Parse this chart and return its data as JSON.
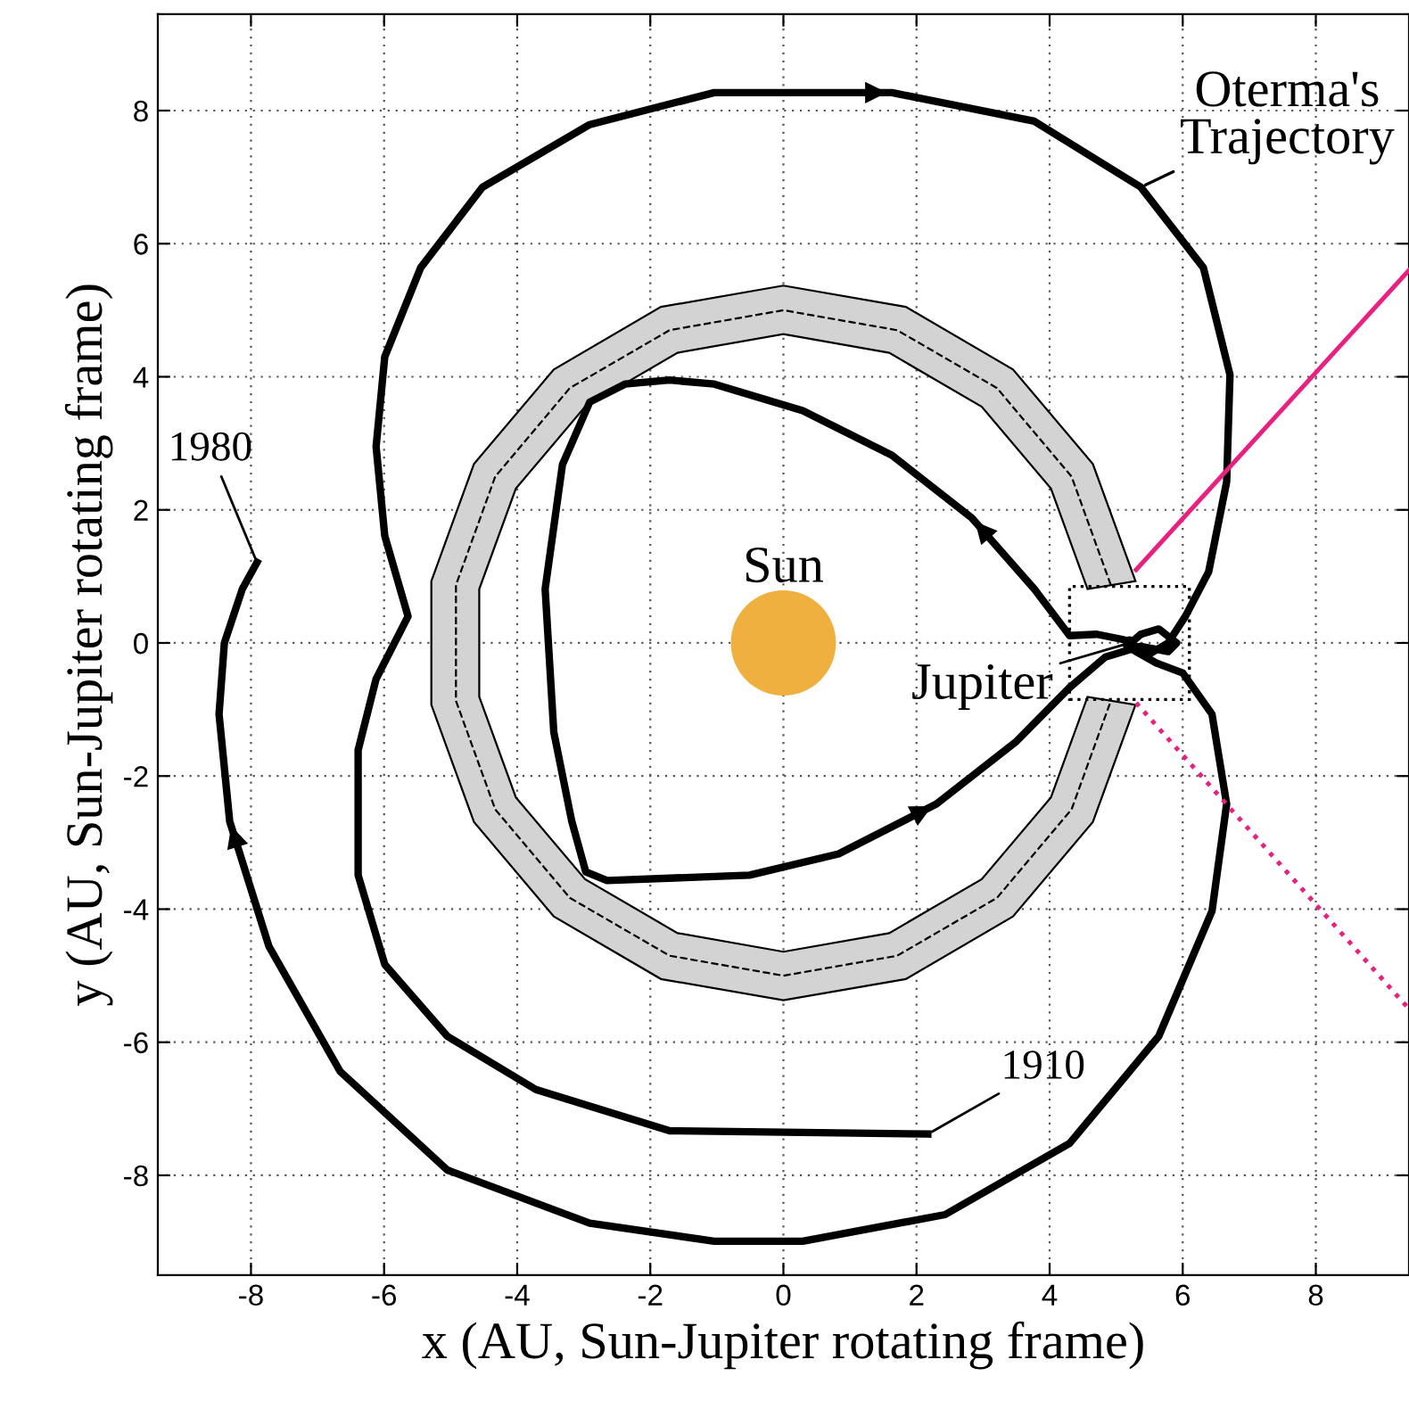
{
  "chart_data": {
    "type": "line",
    "xlabel": "x (AU, Sun-Jupiter rotating frame)",
    "ylabel": "y (AU, Sun-Jupiter rotating frame)",
    "xlim": [
      -9.4,
      9.4
    ],
    "ylim": [
      -9.5,
      9.45
    ],
    "xticks": [
      -8,
      -6,
      -4,
      -2,
      0,
      2,
      4,
      6,
      8
    ],
    "yticks": [
      -8,
      -6,
      -4,
      -2,
      0,
      2,
      4,
      6,
      8
    ],
    "grid": true,
    "marker": "none",
    "series": [
      {
        "type": "area",
        "color": "#d3d3d3",
        "x": [
          5.29,
          4.65,
          3.45,
          1.84,
          0,
          -1.84,
          -3.45,
          -4.65,
          -5.29,
          -5.29,
          -4.65,
          -3.45,
          -1.84,
          0,
          1.84,
          3.45,
          4.65,
          5.29,
          4.57,
          4.02,
          2.98,
          1.59,
          0,
          -1.59,
          -2.98,
          -4.02,
          -4.57,
          -4.57,
          -4.02,
          -2.98,
          -1.59,
          0,
          1.59,
          2.98,
          4.02,
          4.57
        ],
        "values": [
          0.93,
          2.69,
          4.11,
          5.05,
          5.37,
          5.05,
          4.11,
          2.69,
          0.93,
          -0.93,
          -2.69,
          -4.11,
          -5.05,
          -5.37,
          -5.05,
          -4.11,
          -2.69,
          -0.93,
          -0.81,
          -2.32,
          -3.55,
          -4.36,
          -4.64,
          -4.36,
          -3.55,
          -2.32,
          -0.81,
          0.81,
          2.32,
          3.55,
          4.36,
          4.64,
          4.36,
          3.55,
          2.32,
          0.81
        ]
      },
      {
        "type": "line",
        "color": "#000000",
        "line_style": "dashed",
        "x": [
          4.92,
          4.33,
          3.21,
          1.71,
          0,
          -1.71,
          -3.21,
          -4.33,
          -4.92,
          -4.92,
          -4.33,
          -3.21,
          -1.71,
          0,
          1.71,
          3.21,
          4.33,
          4.92
        ],
        "values": [
          0.87,
          2.5,
          3.83,
          4.7,
          5,
          4.7,
          3.83,
          2.5,
          0.87,
          -0.87,
          -2.5,
          -3.83,
          -4.7,
          -5,
          -4.7,
          -3.83,
          -2.5,
          -0.87
        ]
      },
      {
        "name": "Oterma's\nTrajectory",
        "color": "#000000",
        "line_style": "solid",
        "x": [
          2.17,
          -1.71,
          -3.72,
          -5.05,
          -5.99,
          -6.39,
          -6.39,
          -6.12,
          -5.64,
          -5.99,
          -6.12,
          -5.99,
          -5.45,
          -4.52,
          -2.91,
          -1.04,
          1.63,
          3.77,
          5.37,
          6.31,
          6.71,
          6.66,
          6.39,
          6.04,
          5.78,
          5.51,
          5.11,
          4.71,
          4.3,
          3.77,
          2.83,
          1.63,
          0.29,
          -1.04,
          -1.71,
          -2.38,
          -2.91,
          -3.32,
          -3.58,
          -3.45,
          -3.18,
          -2.97,
          -2.65,
          -0.51,
          0.83,
          2.3,
          3.5,
          4.3,
          4.84,
          5.37,
          5.78,
          5.91,
          5.64,
          5.37,
          5.16,
          5.6,
          6.0,
          6.44,
          6.66,
          6.44,
          5.64,
          4.3,
          2.43,
          0.29,
          -1.04,
          -2.91,
          -5.05,
          -6.66,
          -7.73,
          -8.32,
          -8.48,
          -8.4,
          -8.13,
          -7.91
        ],
        "values": [
          -7.38,
          -7.33,
          -6.71,
          -5.91,
          -4.83,
          -3.49,
          -1.61,
          -0.54,
          0.4,
          1.61,
          2.95,
          4.3,
          5.64,
          6.85,
          7.79,
          8.27,
          8.27,
          7.84,
          6.85,
          5.64,
          4.03,
          2.42,
          1.07,
          0.4,
          0.0,
          -0.16,
          0.05,
          0.13,
          0.11,
          0.81,
          1.88,
          2.82,
          3.49,
          3.89,
          3.95,
          3.89,
          3.62,
          2.68,
          0.81,
          -1.34,
          -2.68,
          -3.44,
          -3.57,
          -3.49,
          -3.17,
          -2.42,
          -1.48,
          -0.67,
          -0.21,
          -0.05,
          -0.13,
          0.0,
          0.21,
          0.13,
          -0.05,
          -0.3,
          -0.45,
          -1.07,
          -2.42,
          -4.03,
          -5.91,
          -7.52,
          -8.59,
          -8.99,
          -8.99,
          -8.72,
          -7.92,
          -6.44,
          -4.56,
          -2.68,
          -1.07,
          0.0,
          0.81,
          1.21
        ]
      },
      {
        "type": "scatter",
        "marker": "circle",
        "color": "#f0b040",
        "x": [
          0
        ],
        "values": [
          0
        ]
      },
      {
        "type": "scatter",
        "marker": "circle",
        "color": "#000000",
        "x": [
          5.2
        ],
        "values": [
          0
        ]
      },
      {
        "type": "line",
        "color": "#e8207f",
        "line_style": "solid",
        "x": [
          5.3,
          9.4
        ],
        "values": [
          1.1,
          5.6
        ]
      },
      {
        "type": "line",
        "color": "#e8207f",
        "line_style": "dotted",
        "x": [
          5.3,
          9.4
        ],
        "values": [
          -0.9,
          -5.5
        ]
      }
    ],
    "annotations": [
      {
        "text": "1910",
        "x": 2.17,
        "y": -7.38
      },
      {
        "text": "1980",
        "x": -7.91,
        "y": 1.21
      },
      {
        "text": "Sun",
        "x": 0,
        "y": 0
      },
      {
        "text": "Jupiter",
        "x": 5.2,
        "y": 0
      }
    ]
  }
}
